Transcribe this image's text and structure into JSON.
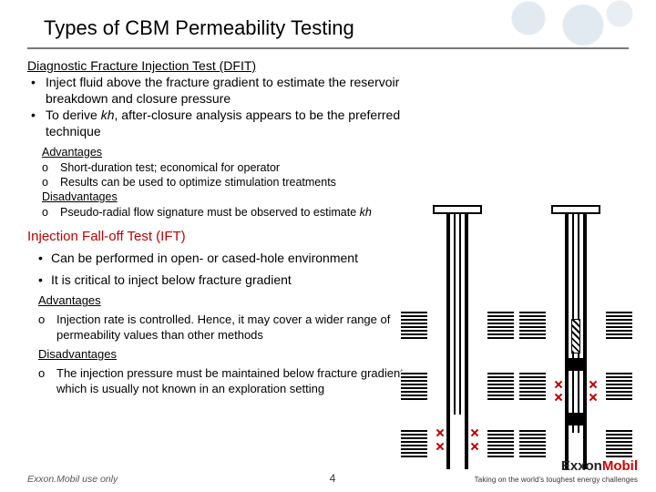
{
  "title": "Types of CBM Permeability Testing",
  "dfit": {
    "heading": "Diagnostic Fracture Injection Test (DFIT)",
    "bullets": [
      "Inject fluid above the fracture gradient to estimate the reservoir breakdown and closure pressure",
      "To derive kh, after-closure analysis appears to be the preferred technique"
    ],
    "adv_h": "Advantages",
    "adv": [
      "Short-duration test; economical for operator",
      "Results can be used to optimize stimulation treatments"
    ],
    "dis_h": "Disadvantages",
    "dis": [
      "Pseudo-radial flow signature must be observed to estimate kh"
    ]
  },
  "ift": {
    "heading": "Injection Fall-off Test (IFT)",
    "bullets": [
      "Can be performed in open- or cased-hole environment",
      "It is critical to inject below fracture gradient"
    ],
    "adv_h": "Advantages",
    "adv": [
      "Injection rate is controlled. Hence, it may cover a wider range of permeability values than other methods"
    ],
    "dis_h": "Disadvantages",
    "dis": [
      "The injection pressure must be maintained below fracture gradient, which is usually not known in an exploration setting"
    ]
  },
  "footer": {
    "note": "Exxon.Mobil use only",
    "page": "4",
    "brand_a": "Exxon",
    "brand_b": "Mobil",
    "tagline": "Taking on the world's toughest energy challenges"
  },
  "colors": {
    "accent": "#c00000"
  }
}
